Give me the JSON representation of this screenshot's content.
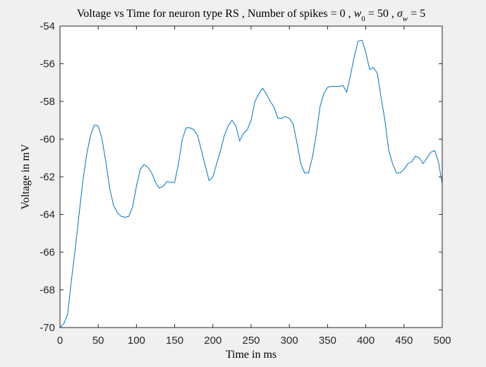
{
  "chart_data": {
    "type": "line",
    "title_parts": [
      "Voltage vs Time for neuron type RS , Number of spikes = 0 , ",
      "w",
      "0",
      " = 50 , ",
      "σ",
      "w",
      " = 5"
    ],
    "xlabel": "Time in ms",
    "ylabel": "Voltage in mV",
    "x": [
      0,
      5,
      10,
      15,
      20,
      25,
      30,
      35,
      40,
      45,
      50,
      55,
      60,
      65,
      70,
      75,
      80,
      85,
      90,
      95,
      100,
      105,
      110,
      115,
      120,
      125,
      130,
      135,
      140,
      145,
      150,
      155,
      160,
      165,
      170,
      175,
      180,
      185,
      190,
      195,
      200,
      205,
      210,
      215,
      220,
      225,
      230,
      235,
      240,
      245,
      250,
      255,
      260,
      265,
      270,
      275,
      280,
      285,
      290,
      295,
      300,
      305,
      310,
      315,
      320,
      325,
      330,
      335,
      340,
      345,
      350,
      355,
      360,
      365,
      370,
      375,
      380,
      385,
      390,
      395,
      400,
      405,
      410,
      415,
      420,
      425,
      430,
      435,
      440,
      445,
      450,
      455,
      460,
      465,
      470,
      475,
      480,
      485,
      490,
      495,
      500
    ],
    "series": [
      {
        "name": "V",
        "color": "#0072bd",
        "values": [
          -70,
          -69.8,
          -69.3,
          -67.5,
          -65.8,
          -64.0,
          -62.2,
          -60.8,
          -59.8,
          -59.25,
          -59.3,
          -60.0,
          -61.2,
          -62.6,
          -63.5,
          -63.9,
          -64.1,
          -64.15,
          -64.1,
          -63.6,
          -62.5,
          -61.6,
          -61.35,
          -61.5,
          -61.8,
          -62.3,
          -62.6,
          -62.5,
          -62.25,
          -62.3,
          -62.3,
          -61.3,
          -60.0,
          -59.4,
          -59.4,
          -59.5,
          -59.8,
          -60.6,
          -61.4,
          -62.2,
          -62.0,
          -61.3,
          -60.6,
          -59.8,
          -59.3,
          -59.0,
          -59.3,
          -60.1,
          -59.7,
          -59.5,
          -59.0,
          -58.0,
          -57.6,
          -57.3,
          -57.6,
          -58.0,
          -58.3,
          -58.9,
          -58.9,
          -58.8,
          -58.9,
          -59.2,
          -60.2,
          -61.3,
          -61.8,
          -61.8,
          -61.0,
          -59.8,
          -58.3,
          -57.6,
          -57.25,
          -57.2,
          -57.2,
          -57.2,
          -57.15,
          -57.5,
          -56.6,
          -55.6,
          -54.8,
          -54.75,
          -55.4,
          -56.3,
          -56.2,
          -56.5,
          -57.8,
          -59.0,
          -60.6,
          -61.3,
          -61.8,
          -61.8,
          -61.6,
          -61.3,
          -61.2,
          -60.9,
          -61.0,
          -61.3,
          -61.0,
          -60.7,
          -60.6,
          -61.2,
          -62.4
        ]
      }
    ],
    "xlim": [
      0,
      500
    ],
    "ylim": [
      -70,
      -54
    ],
    "xticks": [
      0,
      50,
      100,
      150,
      200,
      250,
      300,
      350,
      400,
      450,
      500
    ],
    "yticks": [
      -70,
      -68,
      -66,
      -64,
      -62,
      -60,
      -58,
      -56,
      -54
    ]
  }
}
